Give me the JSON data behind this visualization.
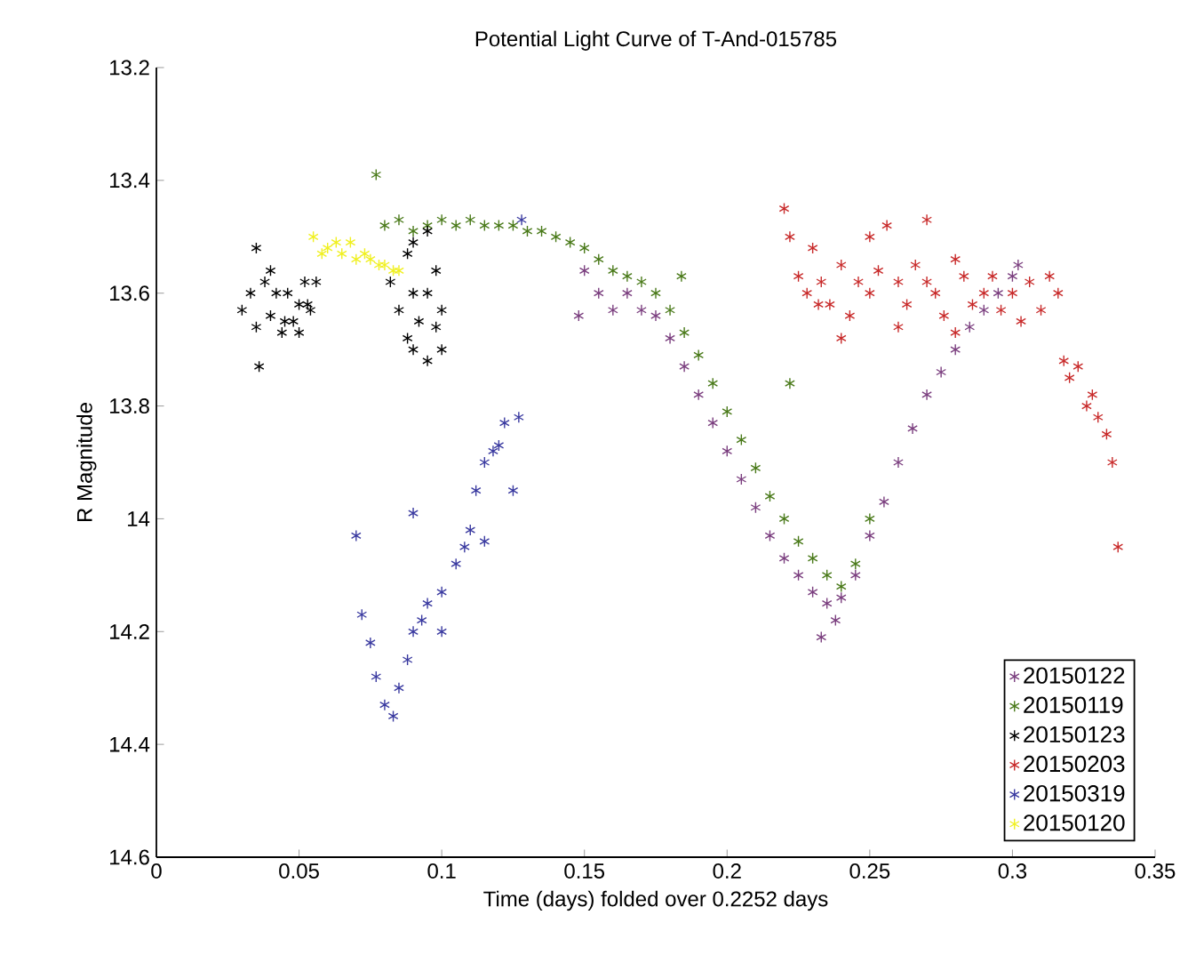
{
  "chart_data": {
    "type": "scatter",
    "title": "Potential Light Curve of T-And-015785",
    "xlabel": "Time (days) folded over 0.2252 days",
    "ylabel": "R Magnitude",
    "xlim": [
      0,
      0.35
    ],
    "xticks": [
      0,
      0.05,
      0.1,
      0.15,
      0.2,
      0.25,
      0.3,
      0.35
    ],
    "ylim": [
      14.6,
      13.2
    ],
    "yticks": [
      13.2,
      13.4,
      13.6,
      13.8,
      14,
      14.2,
      14.4,
      14.6
    ],
    "marker": "cross",
    "legend": "bottom right",
    "series": [
      {
        "name": "20150122",
        "color": "#7b3f7f",
        "x": [
          0.148,
          0.15,
          0.155,
          0.16,
          0.165,
          0.17,
          0.175,
          0.18,
          0.185,
          0.19,
          0.195,
          0.2,
          0.205,
          0.21,
          0.215,
          0.22,
          0.225,
          0.23,
          0.233,
          0.235,
          0.238,
          0.24,
          0.245,
          0.25,
          0.255,
          0.26,
          0.265,
          0.27,
          0.275,
          0.28,
          0.285,
          0.29,
          0.295,
          0.3,
          0.302
        ],
        "values": [
          13.64,
          13.56,
          13.6,
          13.63,
          13.6,
          13.63,
          13.64,
          13.68,
          13.73,
          13.78,
          13.83,
          13.88,
          13.93,
          13.98,
          14.03,
          14.07,
          14.1,
          14.13,
          14.21,
          14.15,
          14.18,
          14.14,
          14.1,
          14.03,
          13.97,
          13.9,
          13.84,
          13.78,
          13.74,
          13.7,
          13.66,
          13.63,
          13.6,
          13.57,
          13.55
        ]
      },
      {
        "name": "20150119",
        "color": "#4a7a1a",
        "x": [
          0.077,
          0.08,
          0.085,
          0.09,
          0.095,
          0.1,
          0.105,
          0.11,
          0.115,
          0.12,
          0.125,
          0.13,
          0.135,
          0.14,
          0.145,
          0.15,
          0.155,
          0.16,
          0.165,
          0.17,
          0.175,
          0.18,
          0.184,
          0.185,
          0.19,
          0.195,
          0.2,
          0.205,
          0.21,
          0.215,
          0.22,
          0.222,
          0.225,
          0.23,
          0.235,
          0.24,
          0.245,
          0.25
        ],
        "values": [
          13.39,
          13.48,
          13.47,
          13.49,
          13.48,
          13.47,
          13.48,
          13.47,
          13.48,
          13.48,
          13.48,
          13.49,
          13.49,
          13.5,
          13.51,
          13.52,
          13.54,
          13.56,
          13.57,
          13.58,
          13.6,
          13.63,
          13.57,
          13.67,
          13.71,
          13.76,
          13.81,
          13.86,
          13.91,
          13.96,
          14.0,
          13.76,
          14.04,
          14.07,
          14.1,
          14.12,
          14.08,
          14.0
        ]
      },
      {
        "name": "20150123",
        "color": "#000000",
        "x": [
          0.03,
          0.033,
          0.035,
          0.036,
          0.038,
          0.04,
          0.042,
          0.044,
          0.046,
          0.048,
          0.05,
          0.052,
          0.054,
          0.056,
          0.04,
          0.045,
          0.05,
          0.035,
          0.053,
          0.082,
          0.085,
          0.088,
          0.09,
          0.092,
          0.095,
          0.098,
          0.1,
          0.09,
          0.095,
          0.1,
          0.088,
          0.09,
          0.095,
          0.098
        ],
        "values": [
          13.63,
          13.6,
          13.52,
          13.73,
          13.58,
          13.64,
          13.6,
          13.67,
          13.6,
          13.65,
          13.62,
          13.58,
          13.63,
          13.58,
          13.56,
          13.65,
          13.67,
          13.66,
          13.62,
          13.58,
          13.63,
          13.68,
          13.6,
          13.65,
          13.6,
          13.66,
          13.63,
          13.7,
          13.72,
          13.7,
          13.53,
          13.51,
          13.49,
          13.56
        ]
      },
      {
        "name": "20150203",
        "color": "#c82a2a",
        "x": [
          0.22,
          0.222,
          0.225,
          0.228,
          0.23,
          0.233,
          0.236,
          0.24,
          0.243,
          0.246,
          0.25,
          0.253,
          0.256,
          0.26,
          0.263,
          0.266,
          0.27,
          0.273,
          0.276,
          0.28,
          0.283,
          0.286,
          0.29,
          0.293,
          0.296,
          0.3,
          0.303,
          0.306,
          0.31,
          0.313,
          0.316,
          0.318,
          0.32,
          0.323,
          0.326,
          0.328,
          0.33,
          0.333,
          0.335,
          0.337,
          0.24,
          0.26,
          0.28,
          0.25,
          0.27,
          0.232
        ],
        "values": [
          13.45,
          13.5,
          13.57,
          13.6,
          13.52,
          13.58,
          13.62,
          13.55,
          13.64,
          13.58,
          13.6,
          13.56,
          13.48,
          13.58,
          13.62,
          13.55,
          13.58,
          13.6,
          13.64,
          13.54,
          13.57,
          13.62,
          13.6,
          13.57,
          13.63,
          13.6,
          13.65,
          13.58,
          13.63,
          13.57,
          13.6,
          13.72,
          13.75,
          13.73,
          13.8,
          13.78,
          13.82,
          13.85,
          13.9,
          14.05,
          13.68,
          13.66,
          13.67,
          13.5,
          13.47,
          13.62
        ]
      },
      {
        "name": "20150319",
        "color": "#3a3aa0",
        "x": [
          0.07,
          0.072,
          0.075,
          0.077,
          0.08,
          0.083,
          0.085,
          0.088,
          0.09,
          0.093,
          0.095,
          0.1,
          0.1,
          0.105,
          0.108,
          0.11,
          0.112,
          0.115,
          0.118,
          0.12,
          0.122,
          0.125,
          0.127,
          0.09,
          0.115,
          0.128
        ],
        "values": [
          14.03,
          14.17,
          14.22,
          14.28,
          14.33,
          14.35,
          14.3,
          14.25,
          14.2,
          14.18,
          14.15,
          14.13,
          14.2,
          14.08,
          14.05,
          14.02,
          13.95,
          13.9,
          13.88,
          13.87,
          13.83,
          13.95,
          13.82,
          13.99,
          14.04,
          13.47
        ]
      },
      {
        "name": "20150120",
        "color": "#f0f020",
        "x": [
          0.055,
          0.058,
          0.06,
          0.063,
          0.065,
          0.068,
          0.07,
          0.073,
          0.075,
          0.078,
          0.08,
          0.083,
          0.085
        ],
        "values": [
          13.5,
          13.53,
          13.52,
          13.51,
          13.53,
          13.51,
          13.54,
          13.53,
          13.54,
          13.55,
          13.55,
          13.56,
          13.56
        ]
      }
    ]
  }
}
